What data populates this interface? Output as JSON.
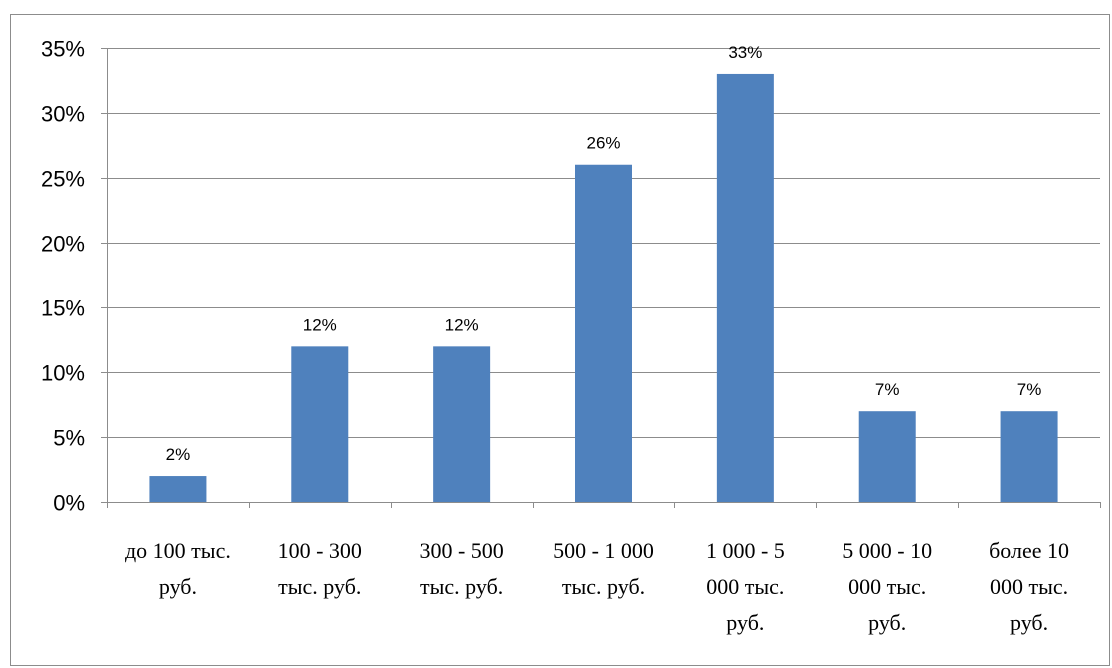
{
  "chart_data": {
    "type": "bar",
    "categories": [
      [
        "до 100 тыс.",
        "руб."
      ],
      [
        "100 - 300",
        "тыс. руб."
      ],
      [
        "300 - 500",
        "тыс. руб."
      ],
      [
        "500 - 1 000",
        "тыс. руб."
      ],
      [
        "1 000 - 5",
        "000 тыс.",
        "руб."
      ],
      [
        "5 000 - 10",
        "000 тыс.",
        "руб."
      ],
      [
        "более 10",
        "000 тыс.",
        "руб."
      ]
    ],
    "values": [
      2,
      12,
      12,
      26,
      33,
      7,
      7
    ],
    "data_labels": [
      "2%",
      "12%",
      "12%",
      "26%",
      "33%",
      "7%",
      "7%"
    ],
    "y_ticks": [
      "0%",
      "5%",
      "10%",
      "15%",
      "20%",
      "25%",
      "30%",
      "35%"
    ],
    "ylim": [
      0,
      35
    ],
    "y_step": 5,
    "grid": true,
    "legend": "none",
    "bar_color": "#4f81bd",
    "grid_color": "#8c8c8c",
    "title": "",
    "xlabel": "",
    "ylabel": ""
  }
}
